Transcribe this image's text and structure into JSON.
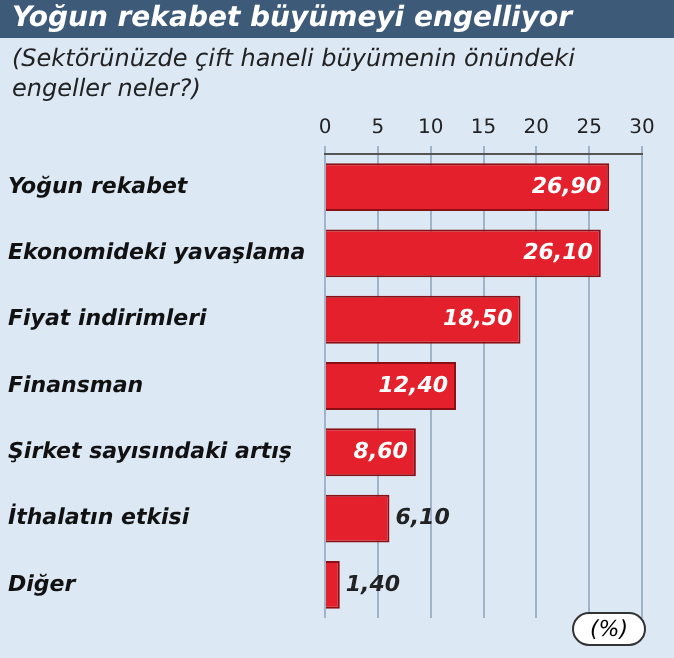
{
  "chart_data": {
    "type": "bar",
    "orientation": "horizontal",
    "title": "Yoğun rekabet büyümeyi engelliyor",
    "subtitle": "(Sektörünüzde çift haneli büyümenin önündeki engeller neler?)",
    "categories": [
      "Yoğun rekabet",
      "Ekonomideki yavaşlama",
      "Fiyat indirimleri",
      "Finansman",
      "Şirket sayısındaki artış",
      "İthalatın etkisi",
      "Diğer"
    ],
    "values": [
      26.9,
      26.1,
      18.5,
      12.4,
      8.6,
      6.1,
      1.4
    ],
    "value_labels": [
      "26,90",
      "26,10",
      "18,50",
      "12,40",
      "8,60",
      "6,10",
      "1,40"
    ],
    "color": "#e3202b",
    "xlim": [
      0,
      30
    ],
    "xticks": [
      0,
      5,
      10,
      15,
      20,
      25,
      30
    ],
    "grid": "x",
    "legend": false,
    "annotations": [
      "(%)"
    ]
  }
}
